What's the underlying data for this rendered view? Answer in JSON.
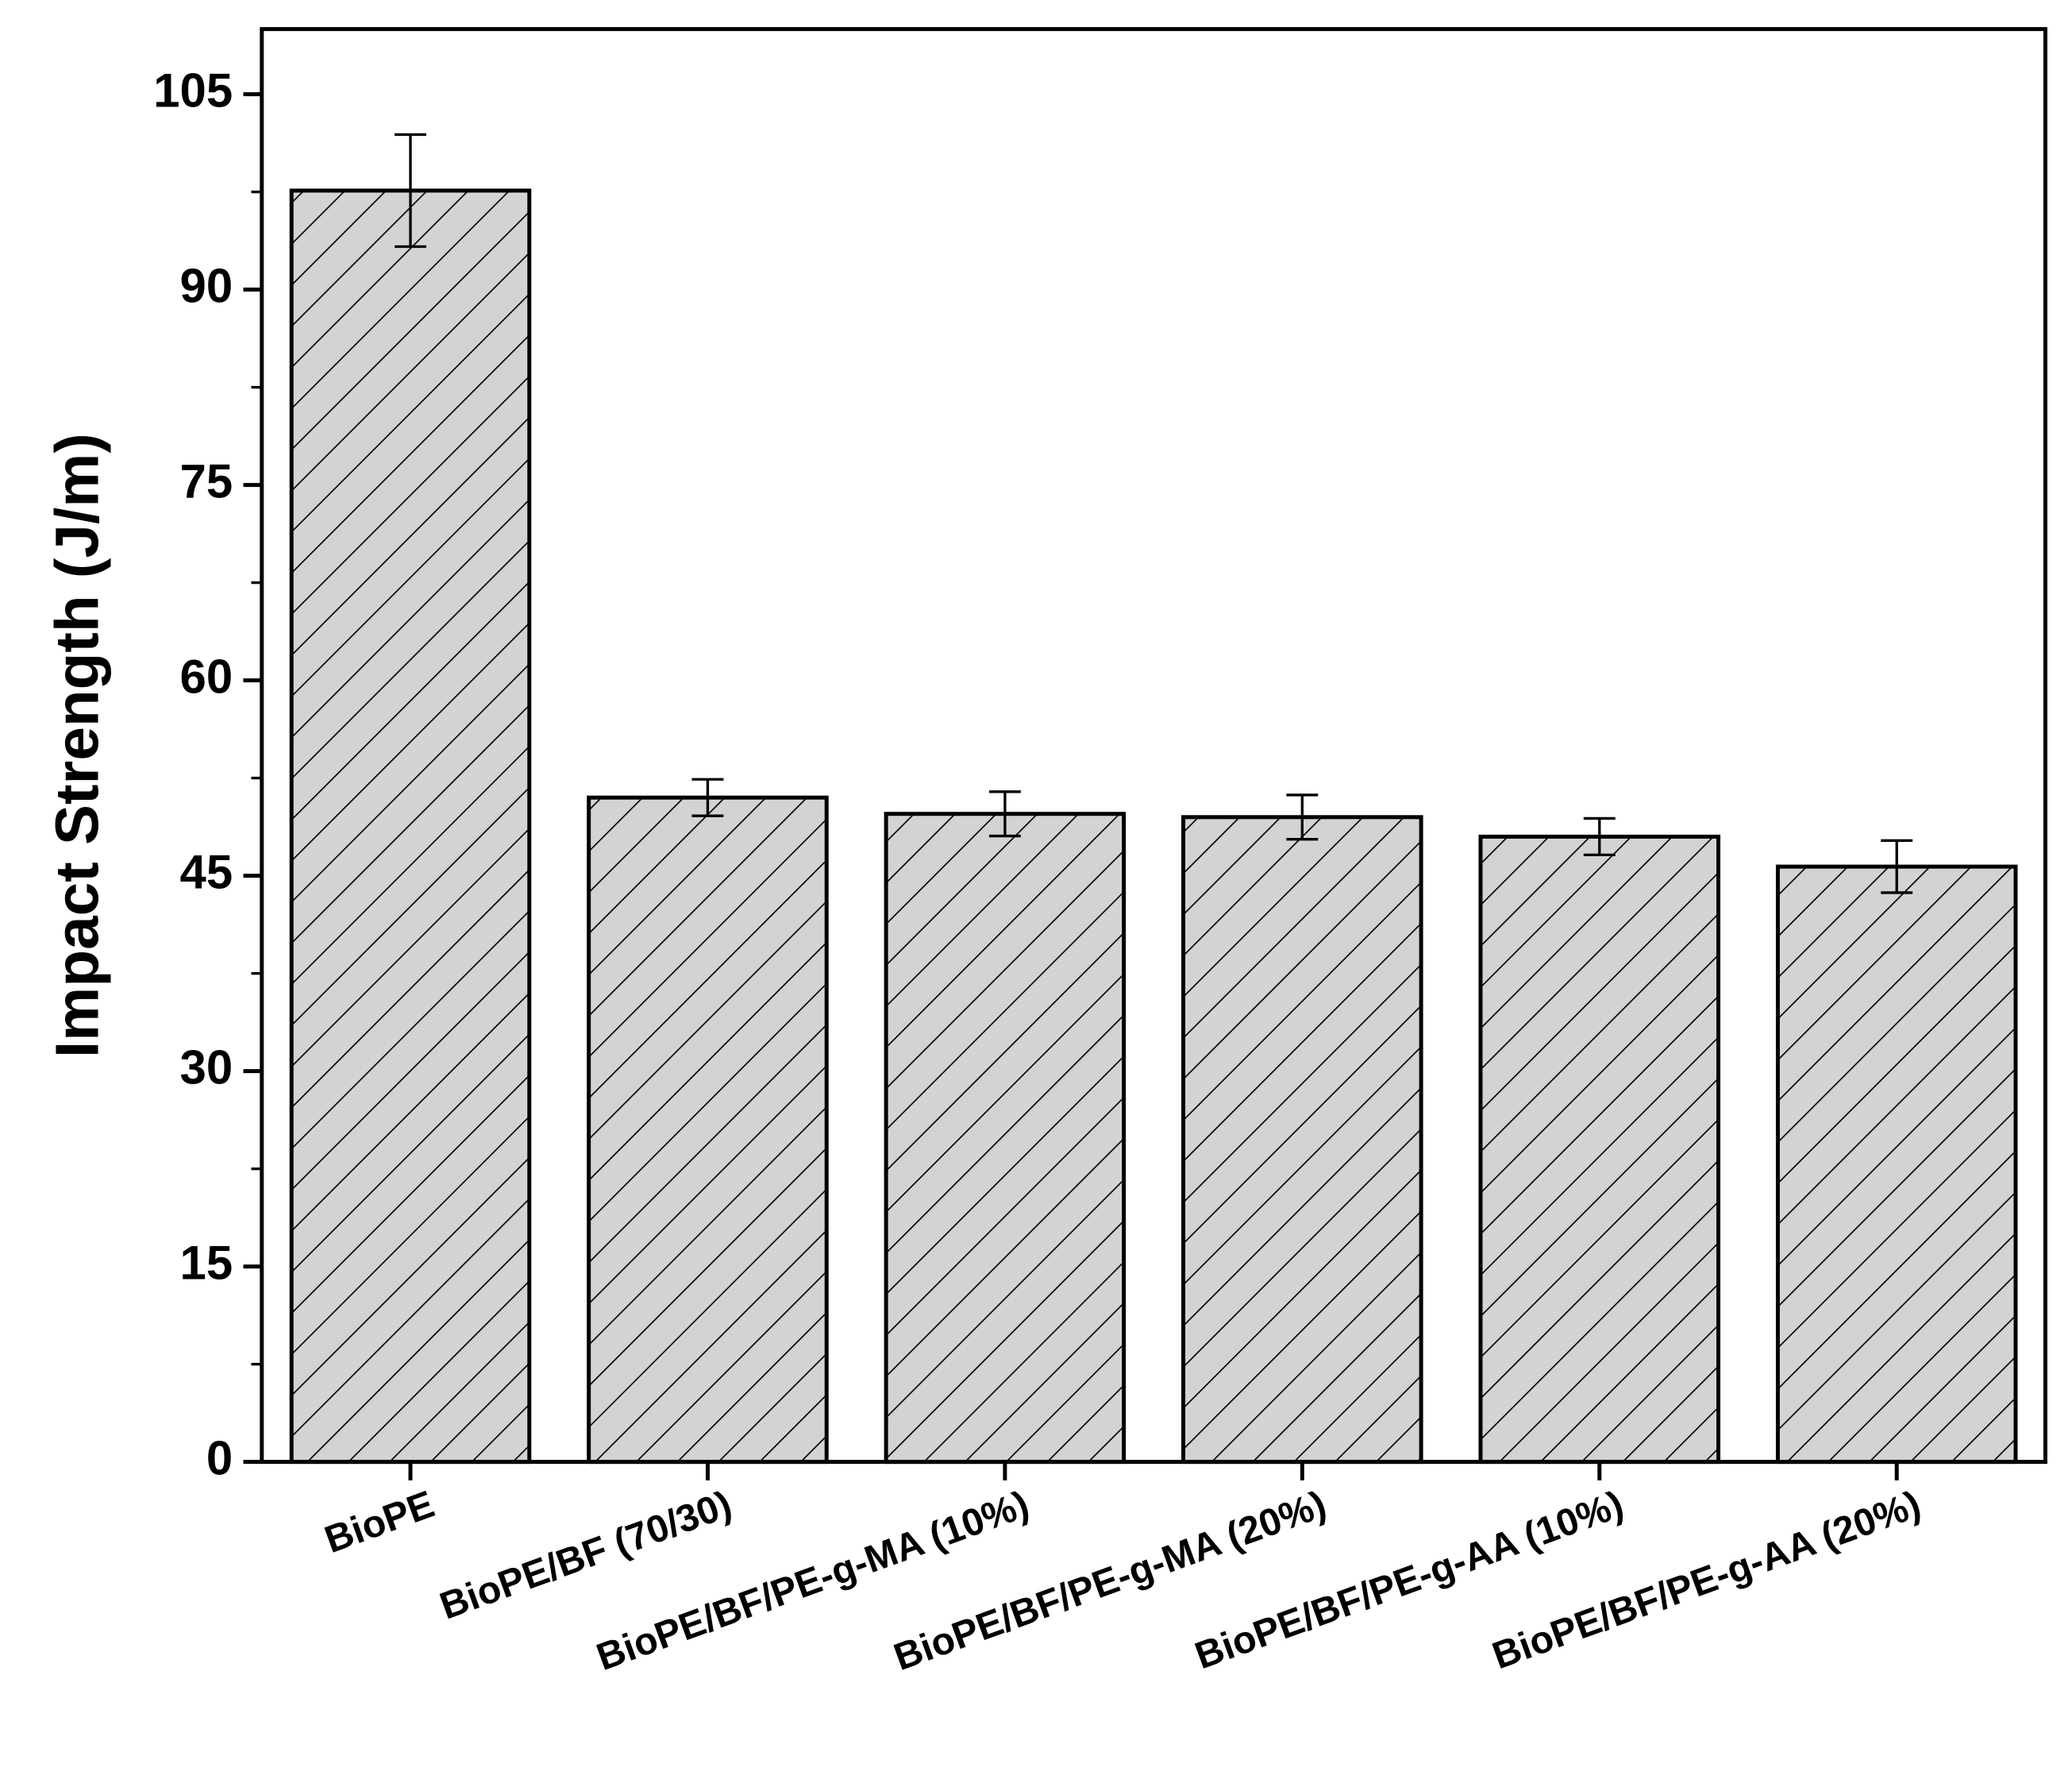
{
  "chart_data": {
    "type": "bar",
    "y_label": "Impact Strength (J/m)",
    "categories": [
      "BioPE",
      "BioPE/BF (70/30)",
      "BioPE/BF/PE-g-MA (10%)",
      "BioPE/BF/PE-g-MA (20%)",
      "BioPE/BF/PE-g-AA (10%)",
      "BioPE/BF/PE-g-AA (20%)"
    ],
    "values": [
      97.6,
      51.0,
      49.75,
      49.5,
      48.0,
      45.7
    ],
    "errors": [
      4.3,
      1.4,
      1.7,
      1.7,
      1.4,
      2.0
    ],
    "color": "#d3d3d3",
    "ylim": [
      0,
      110
    ],
    "yticks": [
      0,
      15,
      30,
      45,
      60,
      75,
      90,
      105
    ]
  }
}
